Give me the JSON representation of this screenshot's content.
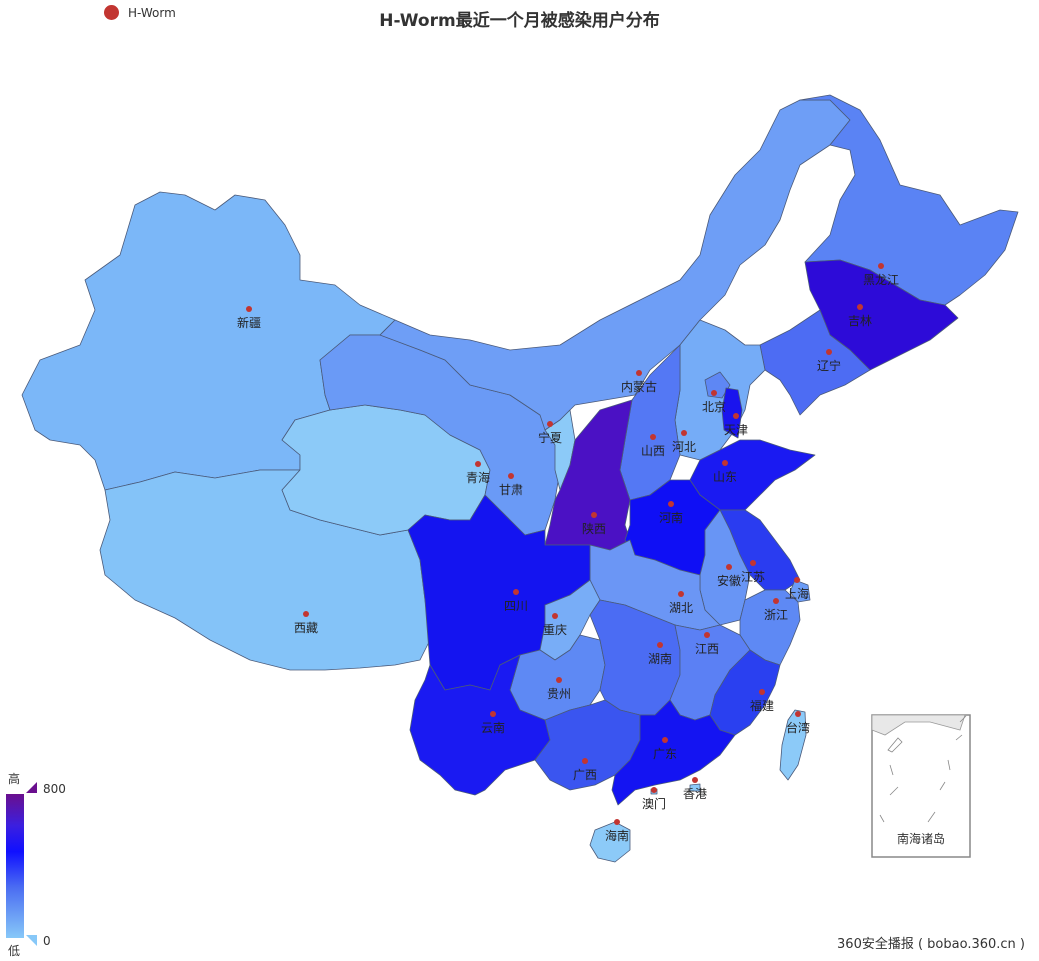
{
  "title": "H-Worm最近一个月被感染用户分布",
  "legend": {
    "label": "H-Worm",
    "color": "#c23531"
  },
  "visual_map": {
    "high_text": "高",
    "low_text": "低",
    "max": "800",
    "min": "0",
    "color_high": "#6a0f8e",
    "color_low": "#87c8f8"
  },
  "credit": "360安全播报 ( bobao.360.cn )",
  "south_sea_label": "南海诸岛",
  "provinces": [
    {
      "name": "新疆",
      "value": 80,
      "color": "#7bb7f8"
    },
    {
      "name": "西藏",
      "value": 60,
      "color": "#84c3f8"
    },
    {
      "name": "青海",
      "value": 40,
      "color": "#8ccaf8"
    },
    {
      "name": "甘肃",
      "value": 250,
      "color": "#6a9af6"
    },
    {
      "name": "内蒙古",
      "value": 230,
      "color": "#6e9ef6"
    },
    {
      "name": "宁夏",
      "value": 50,
      "color": "#8ccaf8"
    },
    {
      "name": "黑龙江",
      "value": 350,
      "color": "#5a83f4"
    },
    {
      "name": "吉林",
      "value": 720,
      "color": "#2d0bd8"
    },
    {
      "name": "辽宁",
      "value": 420,
      "color": "#4d6cf3"
    },
    {
      "name": "北京",
      "value": 300,
      "color": "#5e87f4"
    },
    {
      "name": "天津",
      "value": 650,
      "color": "#1a14ee"
    },
    {
      "name": "河北",
      "value": 180,
      "color": "#75acf7"
    },
    {
      "name": "山西",
      "value": 380,
      "color": "#5478f4"
    },
    {
      "name": "陕西",
      "value": 780,
      "color": "#4b11c4"
    },
    {
      "name": "山东",
      "value": 620,
      "color": "#1a1af2"
    },
    {
      "name": "河南",
      "value": 640,
      "color": "#0f0ff5"
    },
    {
      "name": "江苏",
      "value": 520,
      "color": "#2a3cf0"
    },
    {
      "name": "安徽",
      "value": 300,
      "color": "#6895f5"
    },
    {
      "name": "上海",
      "value": 260,
      "color": "#6b9cf6"
    },
    {
      "name": "浙江",
      "value": 320,
      "color": "#5e89f4"
    },
    {
      "name": "湖北",
      "value": 320,
      "color": "#6b96f5"
    },
    {
      "name": "四川",
      "value": 620,
      "color": "#1414f0"
    },
    {
      "name": "重庆",
      "value": 220,
      "color": "#78adf7"
    },
    {
      "name": "湖南",
      "value": 420,
      "color": "#4b6cf3"
    },
    {
      "name": "江西",
      "value": 360,
      "color": "#5b80f4"
    },
    {
      "name": "福建",
      "value": 520,
      "color": "#2a40f0"
    },
    {
      "name": "贵州",
      "value": 320,
      "color": "#5e89f4"
    },
    {
      "name": "云南",
      "value": 600,
      "color": "#1a1af2"
    },
    {
      "name": "广西",
      "value": 450,
      "color": "#3a55f0"
    },
    {
      "name": "广东",
      "value": 620,
      "color": "#1414f2"
    },
    {
      "name": "海南",
      "value": 60,
      "color": "#8ccaf8"
    },
    {
      "name": "台湾",
      "value": 60,
      "color": "#8ccaf8"
    },
    {
      "name": "香港",
      "value": 0,
      "color": "#8ccaf8"
    },
    {
      "name": "澳门",
      "value": 0,
      "color": "#8ccaf8"
    }
  ]
}
